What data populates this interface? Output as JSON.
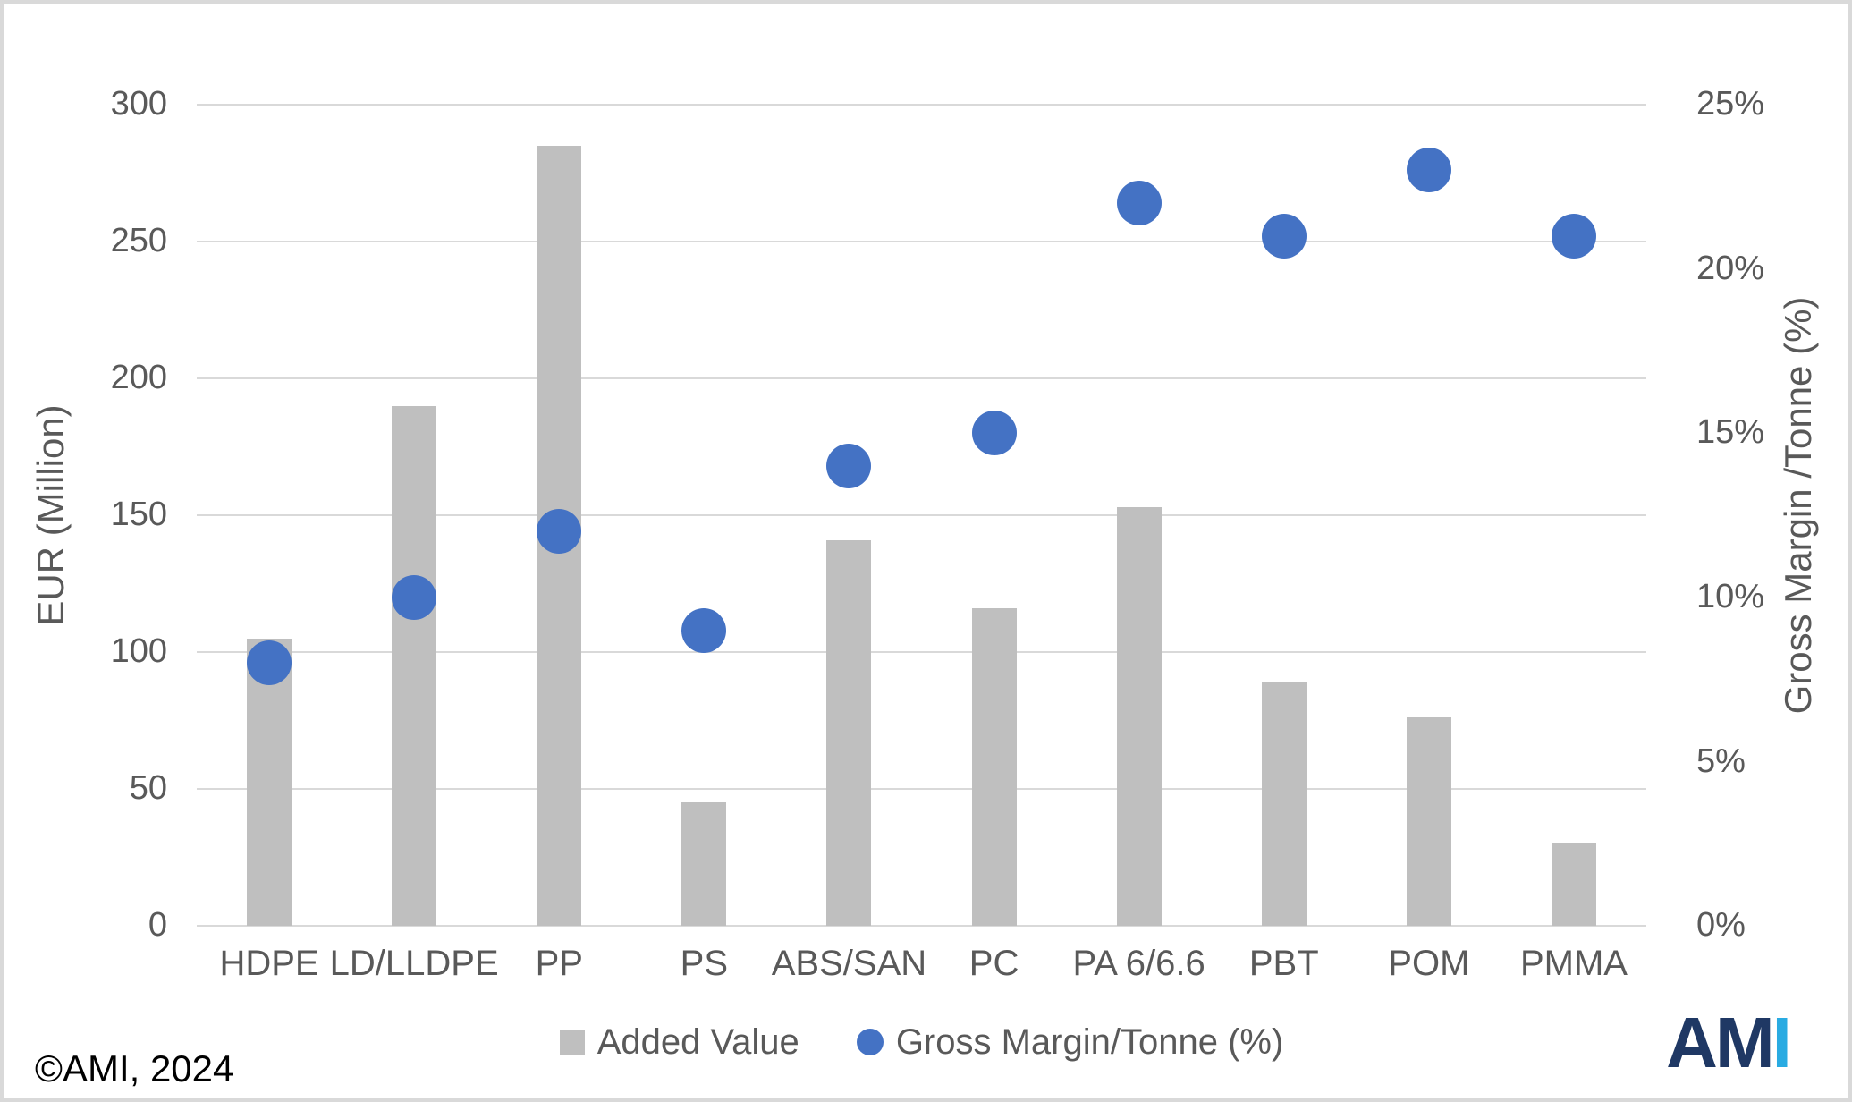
{
  "page": {
    "copyright": "©AMI, 2024",
    "logo": {
      "dark_text": "AM",
      "light_text": "I"
    }
  },
  "chart_data": {
    "type": "combo-bar-scatter",
    "categories": [
      "HDPE",
      "LD/LLDPE",
      "PP",
      "PS",
      "ABS/SAN",
      "PC",
      "PA 6/6.6",
      "PBT",
      "POM",
      "PMMA"
    ],
    "series": [
      {
        "name": "Added Value",
        "type": "bar",
        "axis": "left",
        "color": "#BFBFBF",
        "values": [
          105,
          190,
          285,
          45,
          141,
          116,
          153,
          89,
          76,
          30
        ]
      },
      {
        "name": "Gross Margin/Tonne (%)",
        "type": "scatter",
        "axis": "right",
        "color": "#4472C4",
        "values": [
          8,
          10,
          12,
          9,
          14,
          15,
          22,
          21,
          23,
          21
        ]
      }
    ],
    "left_axis": {
      "title": "EUR (Million)",
      "min": 0,
      "max": 300,
      "tick_step": 50,
      "ticks": [
        "0",
        "50",
        "100",
        "150",
        "200",
        "250",
        "300"
      ]
    },
    "right_axis": {
      "title": "Gross Margin /Tonne (%)",
      "min": 0,
      "max": 25,
      "tick_step": 5,
      "ticks": [
        "0%",
        "5%",
        "10%",
        "15%",
        "20%",
        "25%"
      ]
    },
    "legend": [
      {
        "label": "Added Value",
        "marker": "square",
        "color": "#BFBFBF"
      },
      {
        "label": "Gross Margin/Tonne (%)",
        "marker": "circle",
        "color": "#4472C4"
      }
    ],
    "grid": true,
    "gridline_color": "#D9D9D9",
    "text_color": "#595959",
    "logo_colors": {
      "dark": "#1F3864",
      "light": "#29ABE2"
    }
  }
}
